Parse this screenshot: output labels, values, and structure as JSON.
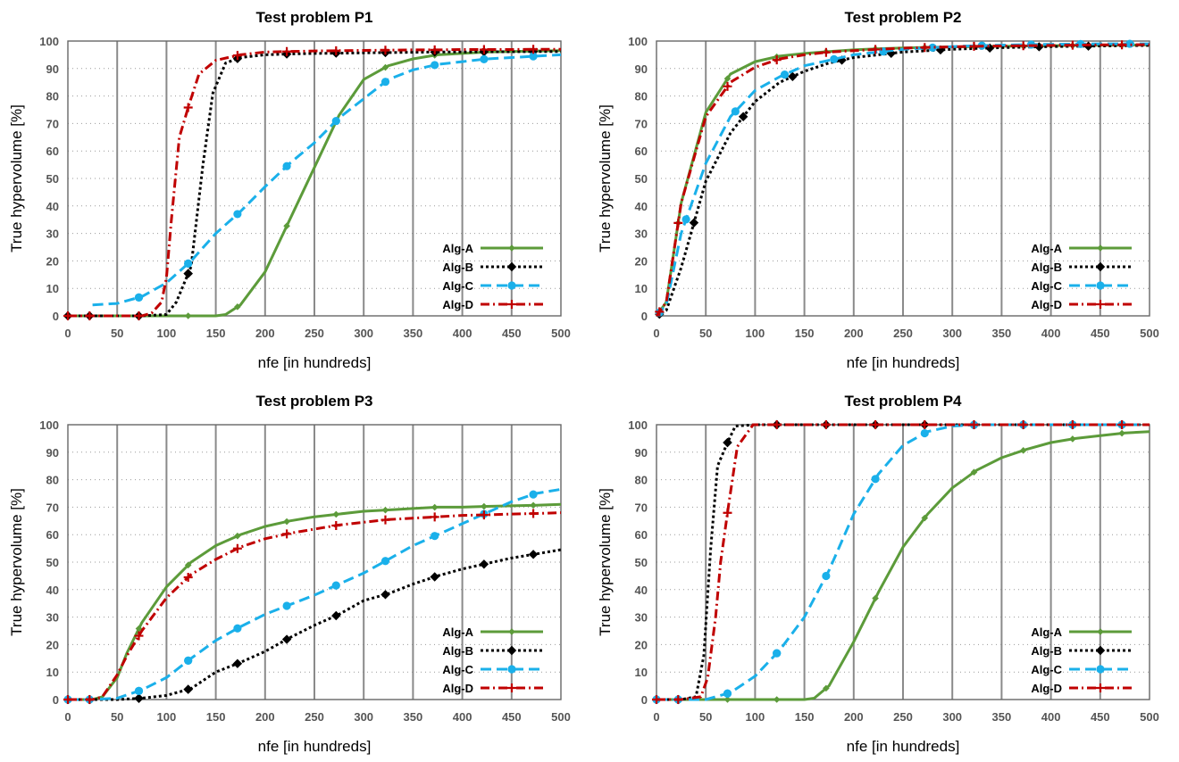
{
  "styles": {
    "Alg-A": {
      "color": "#5c9b3a",
      "dash": "",
      "marker": "diamond-small"
    },
    "Alg-B": {
      "color": "#000000",
      "dash": "3,3",
      "marker": "diamond"
    },
    "Alg-C": {
      "color": "#1ab0ea",
      "dash": "12,6",
      "marker": "circle"
    },
    "Alg-D": {
      "color": "#c00000",
      "dash": "10,4,2,4",
      "marker": "plus"
    }
  },
  "chart_data": [
    {
      "type": "line",
      "title": "Test problem P1",
      "xlabel": "nfe [in hundreds]",
      "ylabel": "True hypervolume [%]",
      "xlim": [
        0,
        500
      ],
      "ylim": [
        0,
        100
      ],
      "xticks": [
        0,
        50,
        100,
        150,
        200,
        250,
        300,
        350,
        400,
        450,
        500
      ],
      "yticks": [
        0,
        10,
        20,
        30,
        40,
        50,
        60,
        70,
        80,
        90,
        100
      ],
      "grid": true,
      "legend_position": "bottom-right",
      "series": [
        {
          "name": "Alg-A",
          "x": [
            0,
            25,
            50,
            75,
            100,
            125,
            150,
            160,
            175,
            200,
            225,
            250,
            275,
            300,
            325,
            350,
            375,
            400,
            425,
            450,
            475,
            500
          ],
          "y": [
            0,
            0,
            0,
            0,
            0,
            0,
            0,
            0.5,
            4,
            16,
            35,
            54,
            73,
            86,
            91,
            93.5,
            95,
            95.5,
            96,
            96.2,
            96.4,
            96.5
          ]
        },
        {
          "name": "Alg-B",
          "x": [
            0,
            25,
            50,
            75,
            100,
            110,
            125,
            137,
            147,
            160,
            175,
            200,
            225,
            250,
            275,
            300,
            325,
            350,
            375,
            400,
            425,
            450,
            475,
            500
          ],
          "y": [
            0,
            0,
            0,
            0,
            0.5,
            5,
            18,
            55,
            81,
            92,
            94,
            95,
            95.3,
            95.5,
            95.6,
            95.7,
            95.8,
            95.9,
            96,
            96,
            96.1,
            96.1,
            96.2,
            96.2
          ]
        },
        {
          "name": "Alg-C",
          "x": [
            25,
            50,
            75,
            100,
            125,
            150,
            175,
            200,
            225,
            250,
            275,
            300,
            325,
            350,
            375,
            400,
            425,
            450,
            475,
            500
          ],
          "y": [
            4,
            4.5,
            7,
            12,
            20,
            30,
            38,
            47,
            55.5,
            63,
            72,
            79,
            86,
            89.5,
            91.5,
            92.5,
            93.5,
            94,
            94.5,
            95
          ]
        },
        {
          "name": "Alg-D",
          "x": [
            0,
            25,
            50,
            75,
            85,
            95,
            100,
            105,
            113,
            123,
            133,
            150,
            175,
            200,
            225,
            250,
            275,
            300,
            325,
            350,
            375,
            400,
            425,
            450,
            475,
            500
          ],
          "y": [
            0,
            0,
            0,
            0,
            1,
            5,
            14,
            35,
            65,
            77,
            88,
            93,
            95,
            96,
            96.2,
            96.4,
            96.5,
            96.6,
            96.7,
            96.8,
            96.8,
            96.9,
            96.9,
            96.9,
            97,
            97
          ]
        }
      ]
    },
    {
      "type": "line",
      "title": "Test problem P2",
      "xlabel": "nfe [in hundreds]",
      "ylabel": "True hypervolume [%]",
      "xlim": [
        0,
        500
      ],
      "ylim": [
        0,
        100
      ],
      "xticks": [
        0,
        50,
        100,
        150,
        200,
        250,
        300,
        350,
        400,
        450,
        500
      ],
      "yticks": [
        0,
        10,
        20,
        30,
        40,
        50,
        60,
        70,
        80,
        90,
        100
      ],
      "grid": true,
      "legend_position": "bottom-right",
      "series": [
        {
          "name": "Alg-A",
          "x": [
            0,
            10,
            25,
            50,
            75,
            100,
            125,
            150,
            175,
            200,
            225,
            250,
            275,
            300,
            325,
            350,
            375,
            400,
            425,
            450,
            475,
            500
          ],
          "y": [
            0,
            5,
            41,
            74,
            88,
            92.5,
            94.5,
            95.5,
            96.2,
            96.8,
            97.2,
            97.5,
            97.7,
            97.9,
            98,
            98.1,
            98.2,
            98.3,
            98.4,
            98.5,
            98.5,
            98.6
          ]
        },
        {
          "name": "Alg-B",
          "x": [
            0,
            10,
            25,
            50,
            75,
            100,
            125,
            150,
            175,
            200,
            225,
            250,
            275,
            300,
            325,
            350,
            375,
            400,
            425,
            450,
            475,
            500
          ],
          "y": [
            0,
            2,
            17.5,
            49,
            66.5,
            78,
            85,
            89,
            92,
            94,
            95,
            96,
            96.5,
            97,
            97.3,
            97.6,
            97.8,
            98,
            98.1,
            98.2,
            98.3,
            98.4
          ]
        },
        {
          "name": "Alg-C",
          "x": [
            0,
            10,
            25,
            50,
            75,
            100,
            125,
            150,
            175,
            200,
            225,
            250,
            275,
            300,
            325,
            350,
            375,
            400,
            425,
            450,
            475,
            500
          ],
          "y": [
            0,
            4,
            30,
            55.5,
            72.5,
            82,
            87,
            91,
            93,
            95,
            96,
            97,
            97.5,
            98,
            98.3,
            98.5,
            98.7,
            98.8,
            98.9,
            99,
            99,
            99
          ]
        },
        {
          "name": "Alg-D",
          "x": [
            0,
            10,
            25,
            50,
            75,
            100,
            125,
            150,
            175,
            200,
            225,
            250,
            275,
            300,
            325,
            350,
            375,
            400,
            425,
            450,
            475,
            500
          ],
          "y": [
            0,
            5,
            41,
            72.5,
            85,
            90.5,
            93.5,
            95,
            96,
            96.5,
            97,
            97.4,
            97.7,
            97.9,
            98.1,
            98.2,
            98.3,
            98.4,
            98.5,
            98.6,
            98.6,
            98.7
          ]
        }
      ]
    },
    {
      "type": "line",
      "title": "Test problem P3",
      "xlabel": "nfe [in hundreds]",
      "ylabel": "True hypervolume [%]",
      "xlim": [
        0,
        500
      ],
      "ylim": [
        0,
        100
      ],
      "xticks": [
        0,
        50,
        100,
        150,
        200,
        250,
        300,
        350,
        400,
        450,
        500
      ],
      "yticks": [
        0,
        10,
        20,
        30,
        40,
        50,
        60,
        70,
        80,
        90,
        100
      ],
      "grid": true,
      "legend_position": "bottom-right",
      "series": [
        {
          "name": "Alg-A",
          "x": [
            0,
            25,
            35,
            50,
            60,
            75,
            100,
            125,
            150,
            175,
            200,
            225,
            250,
            275,
            300,
            325,
            350,
            375,
            400,
            425,
            450,
            475,
            500
          ],
          "y": [
            0,
            0,
            1,
            8,
            17,
            28,
            41,
            50,
            56,
            60,
            63,
            65,
            66.5,
            67.5,
            68.5,
            69,
            69.5,
            70,
            70,
            70.3,
            70.5,
            70.7,
            71
          ]
        },
        {
          "name": "Alg-B",
          "x": [
            0,
            25,
            50,
            75,
            100,
            125,
            150,
            175,
            200,
            225,
            250,
            275,
            300,
            325,
            350,
            375,
            400,
            425,
            450,
            475,
            500
          ],
          "y": [
            0,
            0,
            0,
            0.5,
            1.5,
            4,
            10,
            13.5,
            17.5,
            22.5,
            27,
            31,
            36,
            38.5,
            42,
            45,
            47.5,
            49.5,
            51.5,
            53,
            54.5
          ]
        },
        {
          "name": "Alg-C",
          "x": [
            0,
            25,
            50,
            75,
            100,
            125,
            150,
            175,
            200,
            225,
            250,
            275,
            300,
            325,
            350,
            375,
            400,
            425,
            450,
            475,
            500
          ],
          "y": [
            0,
            0,
            0.5,
            3.5,
            8,
            15,
            21.5,
            26.5,
            31,
            34.5,
            38,
            42,
            46,
            51,
            56,
            60,
            64,
            68,
            72,
            75,
            76.5
          ]
        },
        {
          "name": "Alg-D",
          "x": [
            0,
            25,
            35,
            50,
            60,
            75,
            100,
            125,
            150,
            175,
            200,
            225,
            250,
            275,
            300,
            325,
            350,
            375,
            400,
            425,
            450,
            475,
            500
          ],
          "y": [
            0,
            0,
            1,
            9,
            16,
            25,
            37,
            45.5,
            51,
            55.5,
            58.5,
            60.5,
            62,
            63.5,
            64.5,
            65.5,
            66,
            66.5,
            67,
            67.2,
            67.5,
            67.7,
            68
          ]
        }
      ]
    },
    {
      "type": "line",
      "title": "Test problem P4",
      "xlabel": "nfe [in hundreds]",
      "ylabel": "True hypervolume [%]",
      "xlim": [
        0,
        500
      ],
      "ylim": [
        0,
        100
      ],
      "xticks": [
        0,
        50,
        100,
        150,
        200,
        250,
        300,
        350,
        400,
        450,
        500
      ],
      "yticks": [
        0,
        10,
        20,
        30,
        40,
        50,
        60,
        70,
        80,
        90,
        100
      ],
      "grid": true,
      "legend_position": "bottom-right",
      "series": [
        {
          "name": "Alg-A",
          "x": [
            0,
            25,
            50,
            75,
            100,
            125,
            150,
            160,
            175,
            200,
            225,
            250,
            275,
            300,
            325,
            350,
            375,
            400,
            425,
            450,
            475,
            500
          ],
          "y": [
            0,
            0,
            0,
            0,
            0,
            0,
            0,
            0.5,
            5,
            21,
            39,
            55.5,
            67.5,
            77,
            83.5,
            88,
            91,
            93.5,
            95,
            96,
            97,
            97.5
          ]
        },
        {
          "name": "Alg-B",
          "x": [
            0,
            25,
            40,
            48,
            55,
            62,
            72,
            80,
            100,
            125,
            150,
            175,
            200,
            225,
            250,
            275,
            300,
            325,
            350,
            375,
            400,
            425,
            450,
            475,
            500
          ],
          "y": [
            0,
            0,
            1,
            16,
            55,
            85,
            93.5,
            99.5,
            100,
            100,
            100,
            100,
            100,
            100,
            100,
            100,
            100,
            100,
            100,
            100,
            100,
            100,
            100,
            100,
            100
          ]
        },
        {
          "name": "Alg-C",
          "x": [
            0,
            25,
            50,
            75,
            100,
            125,
            150,
            175,
            200,
            225,
            250,
            275,
            300,
            325,
            350,
            375,
            400,
            425,
            450,
            475,
            500
          ],
          "y": [
            0,
            0,
            0,
            2.5,
            8.5,
            18,
            30,
            47,
            67.5,
            82,
            92.5,
            97.5,
            99.5,
            100,
            100,
            100,
            100,
            100,
            100,
            100,
            100
          ]
        },
        {
          "name": "Alg-D",
          "x": [
            0,
            25,
            45,
            52,
            60,
            65,
            73,
            82,
            98,
            125,
            150,
            175,
            200,
            225,
            250,
            275,
            300,
            325,
            350,
            375,
            400,
            425,
            450,
            475,
            500
          ],
          "y": [
            0,
            0,
            1,
            8,
            30,
            50,
            70.5,
            92,
            100,
            100,
            100,
            100,
            100,
            100,
            100,
            100,
            100,
            100,
            100,
            100,
            100,
            100,
            100,
            100,
            100
          ]
        }
      ]
    }
  ]
}
